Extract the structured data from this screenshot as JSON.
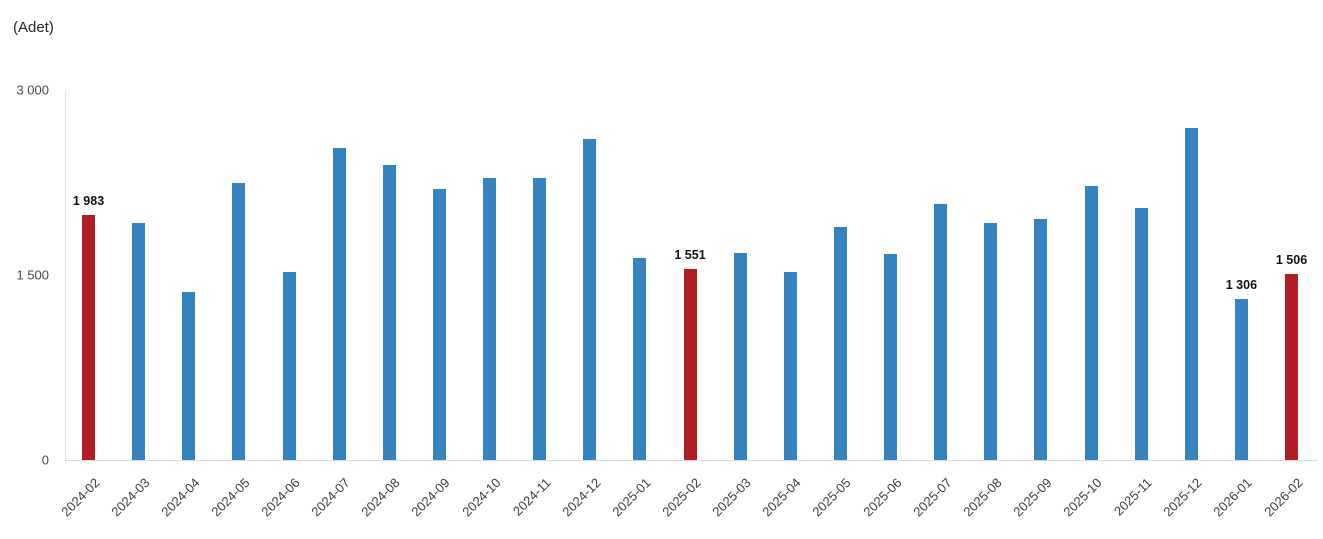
{
  "unit_label": "(Adet)",
  "colors": {
    "bar_default": "#3584c0",
    "bar_highlight": "#b11f24",
    "axis_line": "#e4e4e4",
    "baseline": "#d9d9d9",
    "tick_text": "#4a4a4a",
    "x_label_text": "#3d3d3d",
    "value_label_text": "#111111"
  },
  "y_axis": {
    "ticks": [
      "3 000",
      "1 500",
      "0"
    ],
    "min": 0,
    "max": 3000
  },
  "chart_data": {
    "type": "bar",
    "title": "(Adet)",
    "xlabel": "",
    "ylabel": "(Adet)",
    "ylim": [
      0,
      3000
    ],
    "grid": false,
    "legend": false,
    "categories": [
      "2024-02",
      "2024-03",
      "2024-04",
      "2024-05",
      "2024-06",
      "2024-07",
      "2024-08",
      "2024-09",
      "2024-10",
      "2024-11",
      "2024-12",
      "2025-01",
      "2025-02",
      "2025-03",
      "2025-04",
      "2025-05",
      "2025-06",
      "2025-07",
      "2025-08",
      "2025-09",
      "2025-10",
      "2025-11",
      "2025-12",
      "2026-01",
      "2026-02"
    ],
    "values": [
      1983,
      1925,
      1365,
      2245,
      1525,
      2530,
      2390,
      2195,
      2285,
      2290,
      2605,
      1640,
      1551,
      1680,
      1525,
      1890,
      1670,
      2075,
      1925,
      1955,
      2225,
      2040,
      2690,
      1306,
      1506
    ],
    "highlighted_categories": [
      "2024-02",
      "2025-02",
      "2026-02"
    ],
    "value_labels": {
      "2024-02": "1 983",
      "2025-02": "1 551",
      "2026-01": "1 306",
      "2026-02": "1 506"
    }
  }
}
